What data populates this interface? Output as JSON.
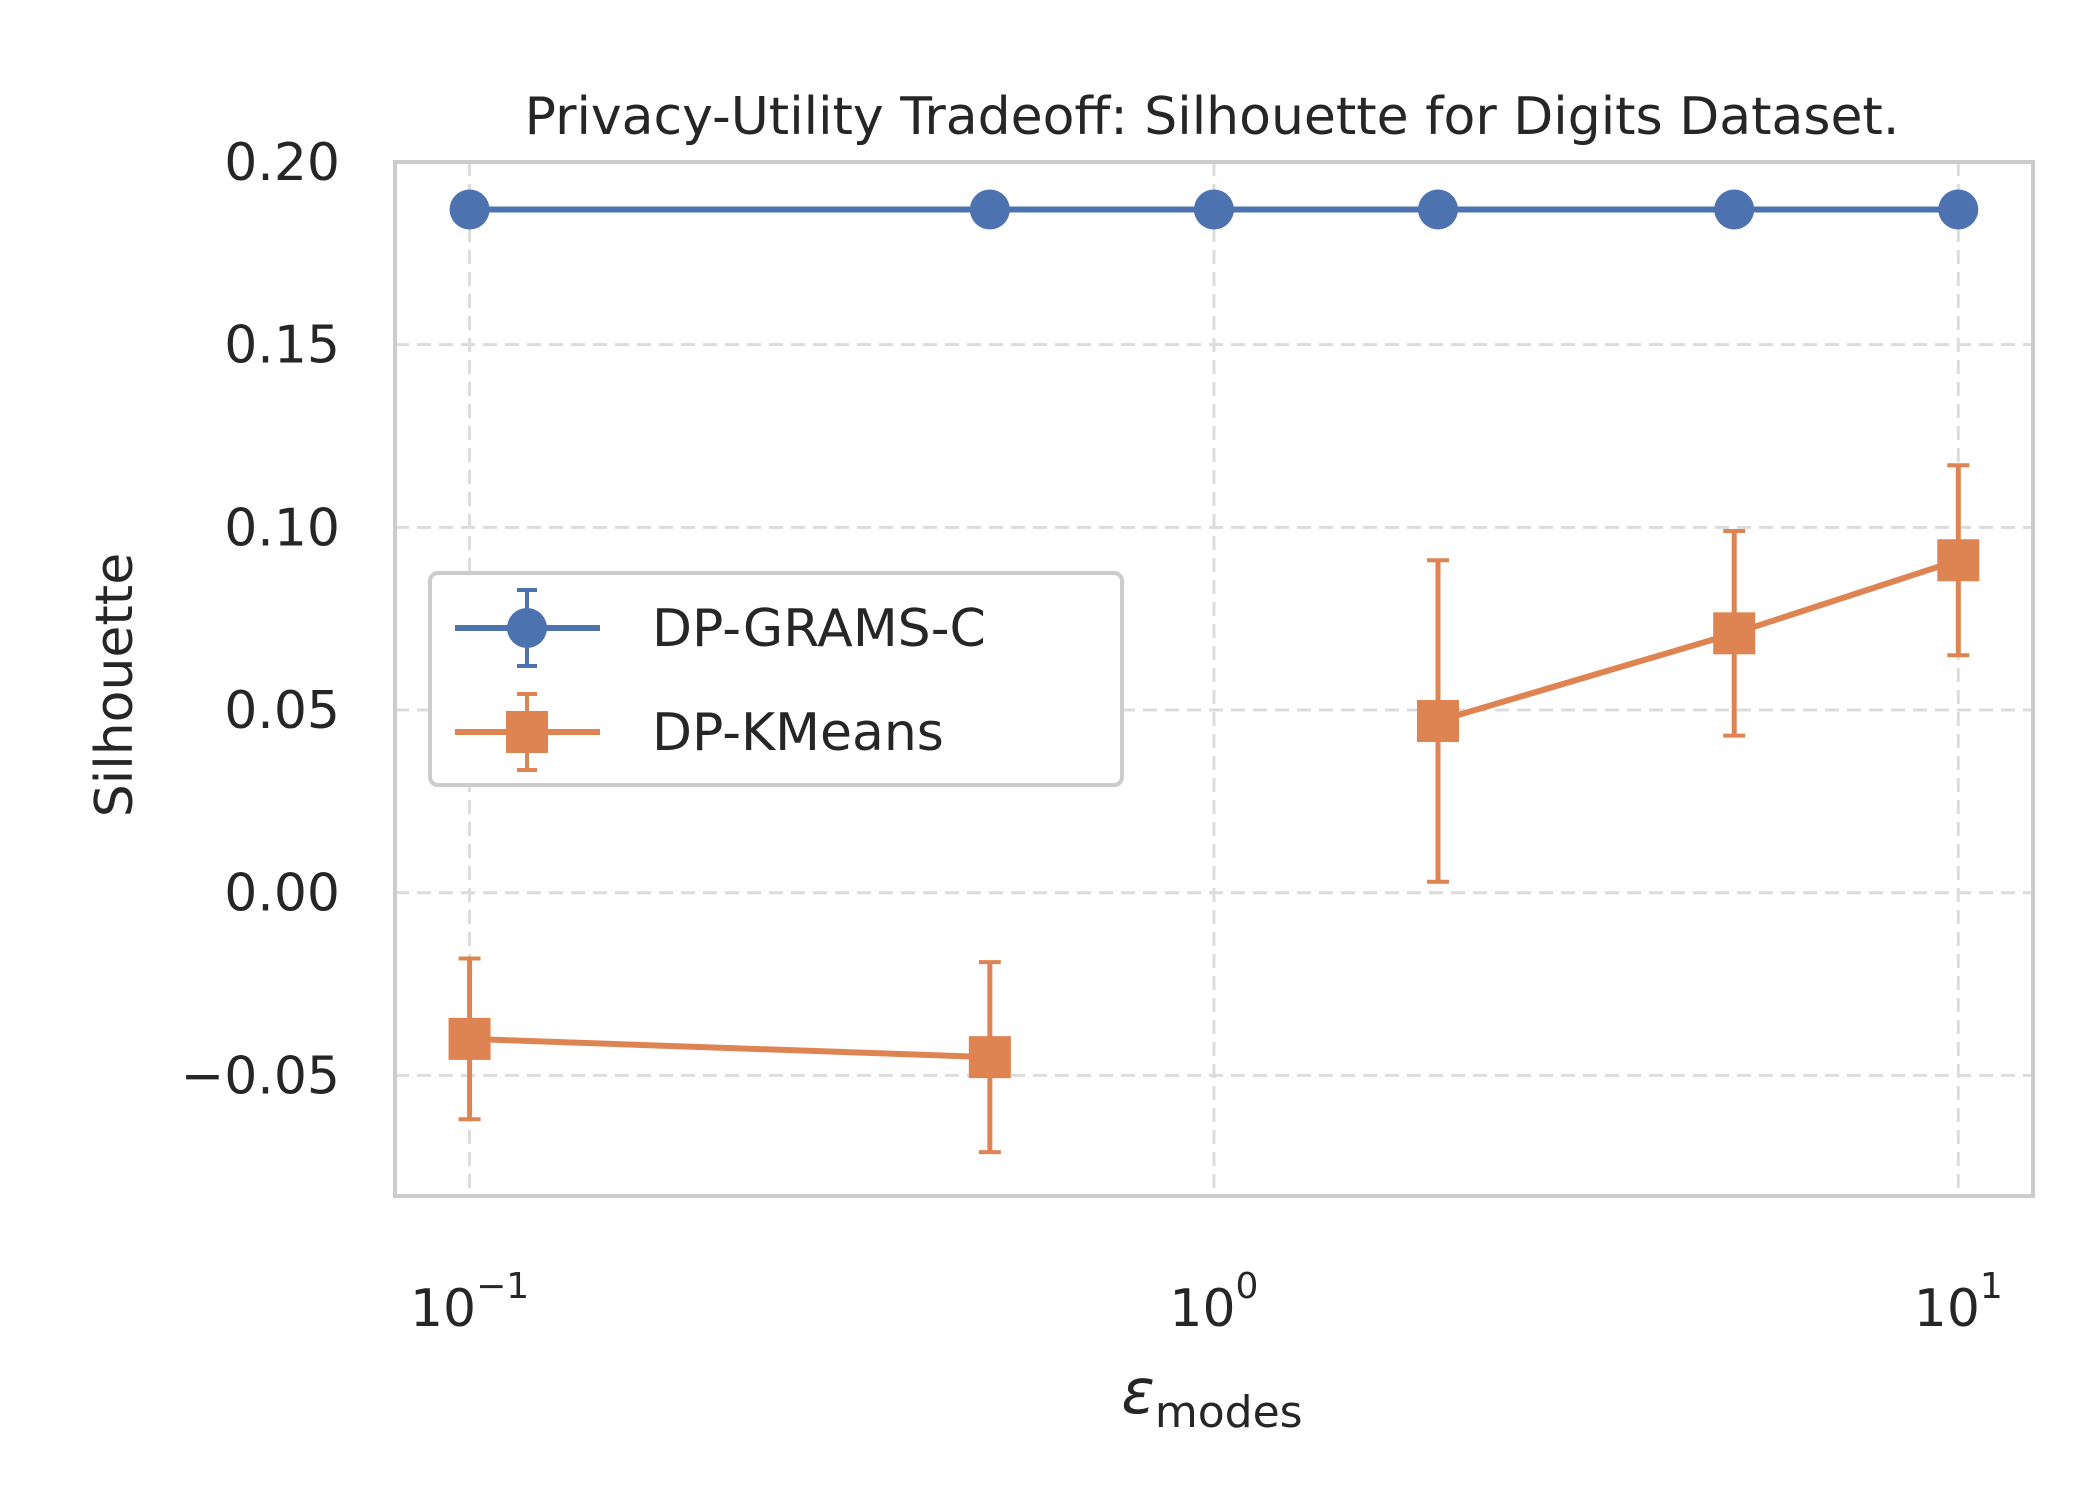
{
  "chart_data": {
    "type": "line",
    "title": "Privacy-Utility Tradeoff: Silhouette for Digits Dataset.",
    "xlabel": "ε",
    "xlabel_sub": "modes",
    "ylabel": "Silhouette",
    "x_scale": "log",
    "x_range": [
      0.0794,
      12.6
    ],
    "ylim": [
      -0.083,
      0.2
    ],
    "x_ticks": [
      {
        "value": 0.1,
        "base": "10",
        "exp": "−1"
      },
      {
        "value": 1,
        "base": "10",
        "exp": "0"
      },
      {
        "value": 10,
        "base": "10",
        "exp": "1"
      }
    ],
    "y_ticks": [
      {
        "value": -0.05,
        "label": "−0.05"
      },
      {
        "value": 0.0,
        "label": "0.00"
      },
      {
        "value": 0.05,
        "label": "0.05"
      },
      {
        "value": 0.1,
        "label": "0.10"
      },
      {
        "value": 0.15,
        "label": "0.15"
      },
      {
        "value": 0.2,
        "label": "0.20"
      }
    ],
    "grid": true,
    "legend_position": "center-left",
    "series": [
      {
        "name": "DP-GRAMS-C",
        "color": "#4c72b0",
        "marker": "circle",
        "x": [
          0.1,
          0.5,
          1,
          2,
          5,
          10
        ],
        "y": [
          0.187,
          0.187,
          0.187,
          0.187,
          0.187,
          0.187
        ],
        "err": [
          0,
          0,
          0,
          0,
          0,
          0
        ],
        "segments": [
          [
            0,
            5
          ]
        ]
      },
      {
        "name": "DP-KMeans",
        "color": "#dd8452",
        "marker": "square",
        "x": [
          0.1,
          0.5,
          1,
          2,
          5,
          10
        ],
        "y": [
          -0.04,
          -0.045,
          null,
          0.047,
          0.071,
          0.091
        ],
        "err": [
          0.022,
          0.026,
          null,
          0.044,
          0.028,
          0.026
        ],
        "segments": [
          [
            0,
            1
          ],
          [
            3,
            5
          ]
        ]
      }
    ]
  }
}
